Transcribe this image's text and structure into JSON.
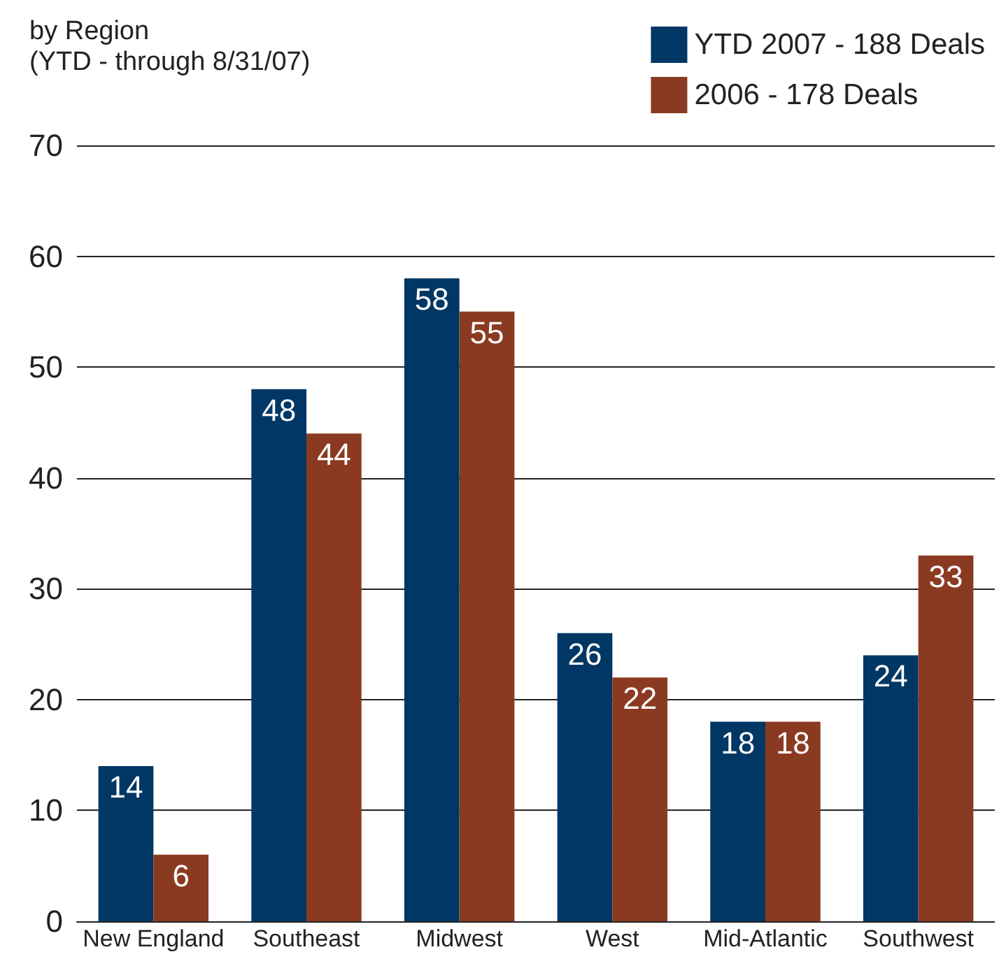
{
  "chart_data": {
    "type": "bar",
    "title": "by Region",
    "subtitle": "(YTD - through 8/31/07)",
    "categories": [
      "New England",
      "Southeast",
      "Midwest",
      "West",
      "Mid-Atlantic",
      "Southwest"
    ],
    "series": [
      {
        "name": "YTD 2007 - 188 Deals",
        "color": "#003764",
        "values": [
          14,
          48,
          58,
          26,
          18,
          24
        ]
      },
      {
        "name": "2006 - 178 Deals",
        "color": "#8b3a22",
        "values": [
          6,
          44,
          55,
          22,
          18,
          33
        ]
      }
    ],
    "ylim": [
      0,
      70
    ],
    "yticks": [
      0,
      10,
      20,
      30,
      40,
      50,
      60,
      70
    ],
    "grid": "y",
    "legend": "top right",
    "data_labels": true
  }
}
